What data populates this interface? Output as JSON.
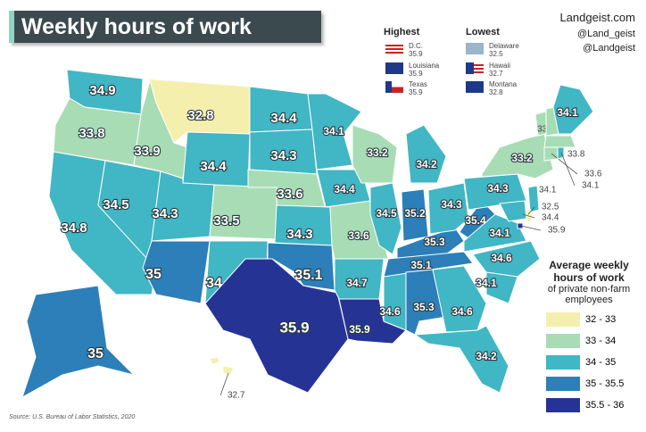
{
  "header": {
    "title": "Weekly hours of work"
  },
  "highlights": {
    "highest_title": "Highest",
    "highest": [
      {
        "label": "D.C.",
        "value": 35.9
      },
      {
        "label": "Louisiana",
        "value": 35.9
      },
      {
        "label": "Texas",
        "value": 35.9
      }
    ],
    "lowest_title": "Lowest",
    "lowest": [
      {
        "label": "Delaware",
        "value": 32.5
      },
      {
        "label": "Hawaii",
        "value": 32.7
      },
      {
        "label": "Montana",
        "value": 32.8
      }
    ]
  },
  "brand": {
    "site": "Landgeist.com",
    "instagram": "@Land_geist",
    "twitter": "@Landgeist"
  },
  "legend": {
    "title": "Average weekly hours of work",
    "subtitle": "of private non-farm employees",
    "bins": [
      {
        "label": "32 - 33",
        "min": 32,
        "max": 33,
        "color": "#f5efad"
      },
      {
        "label": "33 - 34",
        "min": 33,
        "max": 34,
        "color": "#a8dcb5"
      },
      {
        "label": "34 - 35",
        "min": 34,
        "max": 35,
        "color": "#41b6c4"
      },
      {
        "label": "35 - 35.5",
        "min": 35,
        "max": 35.5,
        "color": "#2c7fb8"
      },
      {
        "label": "35.5 - 36",
        "min": 35.5,
        "max": 36,
        "color": "#253494"
      }
    ]
  },
  "map": {
    "values": [
      34.9,
      33.8,
      34.8,
      34.5,
      33.9,
      32.8,
      34.4,
      34.3,
      33.5,
      35,
      34,
      34.4,
      34.3,
      33.6,
      34.3,
      35.1,
      35.9,
      34.1,
      34.4,
      33.6,
      34.7,
      35.9,
      33.2,
      34.5,
      34.6,
      34.2,
      35.2,
      35.3,
      35.1,
      35.3,
      34.6,
      34.2,
      34.3,
      35.4,
      34.1,
      34.6,
      34.1,
      34.3,
      33.2,
      33.7,
      33.9,
      34.1,
      33.8,
      33.6,
      34.1,
      34.1,
      32.5,
      34.4,
      35.9,
      32.7,
      35
    ]
  },
  "source": "Source: U.S. Bureau of Labor Statistics, 2020"
}
